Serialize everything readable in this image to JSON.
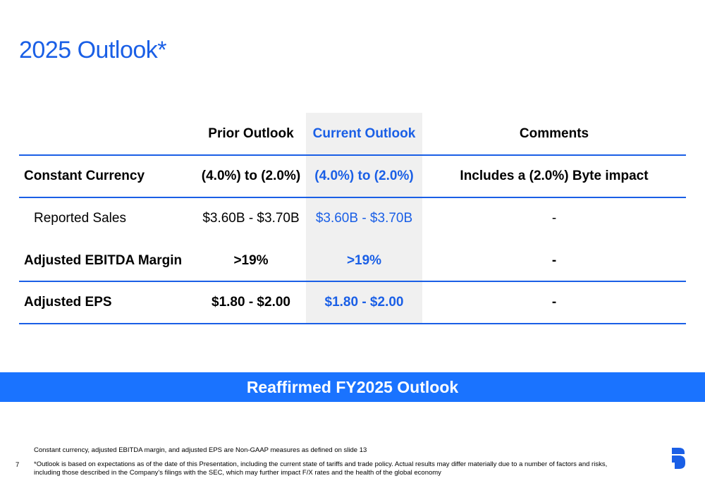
{
  "title": "2025 Outlook*",
  "table": {
    "headers": [
      "",
      "Prior Outlook",
      "Current Outlook",
      "Comments"
    ],
    "rows": [
      {
        "label": "Constant Currency",
        "prior": "(4.0%) to (2.0%)",
        "current": "(4.0%) to (2.0%)",
        "comment": "Includes a (2.0%) Byte impact"
      },
      {
        "label": "Reported Sales",
        "prior": "$3.60B - $3.70B",
        "current": "$3.60B - $3.70B",
        "comment": "-"
      },
      {
        "label": "Adjusted EBITDA Margin",
        "prior": ">19%",
        "current": ">19%",
        "comment": "-"
      },
      {
        "label": "Adjusted EPS",
        "prior": "$1.80 - $2.00",
        "current": "$1.80 - $2.00",
        "comment": "-"
      }
    ]
  },
  "banner": "Reaffirmed FY2025 Outlook",
  "footnotes": {
    "note1": "Constant currency, adjusted EBITDA margin, and adjusted EPS are Non-GAAP measures as defined on slide 13",
    "note2_line1": "*Outlook is based on expectations as of the date of this Presentation, including the current state of tariffs and trade policy. Actual results may differ materially due to a number of factors and risks,",
    "note2_line2": "including those described in the Company's filings with the SEC, which may further impact F/X rates and the health of the global economy"
  },
  "page_number": "7",
  "colors": {
    "accent": "#1a5fe6",
    "banner": "#1a73ff",
    "highlight_column": "#f0f0f0"
  },
  "icons": {
    "logo": "company-logo-icon"
  }
}
